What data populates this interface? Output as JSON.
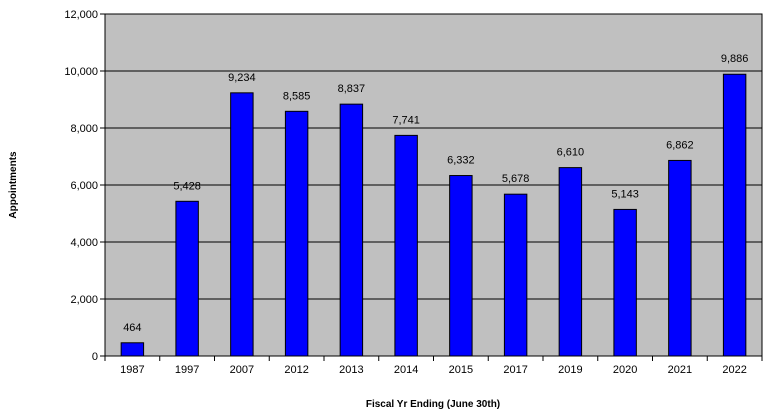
{
  "chart_data": {
    "type": "bar",
    "title": "",
    "xlabel": "Fiscal Yr Ending (June 30th)",
    "ylabel": "Appointments",
    "ylim": [
      0,
      12000
    ],
    "yticks": [
      0,
      2000,
      4000,
      6000,
      8000,
      10000,
      12000
    ],
    "ytick_labels": [
      "0",
      "2,000",
      "4,000",
      "6,000",
      "8,000",
      "10,000",
      "12,000"
    ],
    "grid": true,
    "legend": "none",
    "categories": [
      "1987",
      "1997",
      "2007",
      "2012",
      "2013",
      "2014",
      "2015",
      "2017",
      "2019",
      "2020",
      "2021",
      "2022"
    ],
    "values": [
      464,
      5428,
      9234,
      8585,
      8837,
      7741,
      6332,
      5678,
      6610,
      5143,
      6862,
      9886
    ],
    "value_labels": [
      "464",
      "5,428",
      "9,234",
      "8,585",
      "8,837",
      "7,741",
      "6,332",
      "5,678",
      "6,610",
      "5,143",
      "6,862",
      "9,886"
    ],
    "colors": {
      "bar_fill": "#0000ff",
      "bar_stroke": "#000000",
      "plot_background": "#c0c0c0",
      "gridline": "#000000"
    }
  }
}
